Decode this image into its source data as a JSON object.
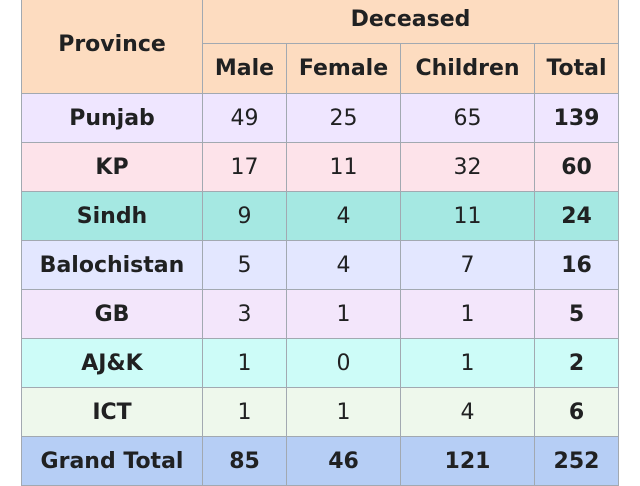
{
  "table": {
    "header": {
      "province": "Province",
      "group": "Deceased",
      "columns": [
        "Male",
        "Female",
        "Children",
        "Total"
      ]
    },
    "rows": [
      {
        "province": "Punjab",
        "male": "49",
        "female": "25",
        "children": "65",
        "total": "139",
        "color": "#efe6ff"
      },
      {
        "province": "KP",
        "male": "17",
        "female": "11",
        "children": "32",
        "total": "60",
        "color": "#fde3ea"
      },
      {
        "province": "Sindh",
        "male": "9",
        "female": "4",
        "children": "11",
        "total": "24",
        "color": "#a5e8e2"
      },
      {
        "province": "Balochistan",
        "male": "5",
        "female": "4",
        "children": "7",
        "total": "16",
        "color": "#e3e7ff"
      },
      {
        "province": "GB",
        "male": "3",
        "female": "1",
        "children": "1",
        "total": "5",
        "color": "#f3e6fb"
      },
      {
        "province": "AJ&K",
        "male": "1",
        "female": "0",
        "children": "1",
        "total": "2",
        "color": "#cdfcf8"
      },
      {
        "province": "ICT",
        "male": "1",
        "female": "1",
        "children": "4",
        "total": "6",
        "color": "#eef8ec"
      }
    ],
    "grand_total": {
      "province": "Grand Total",
      "male": "85",
      "female": "46",
      "children": "121",
      "total": "252",
      "color": "#b6cef5"
    },
    "header_color": "#fddcc0"
  }
}
